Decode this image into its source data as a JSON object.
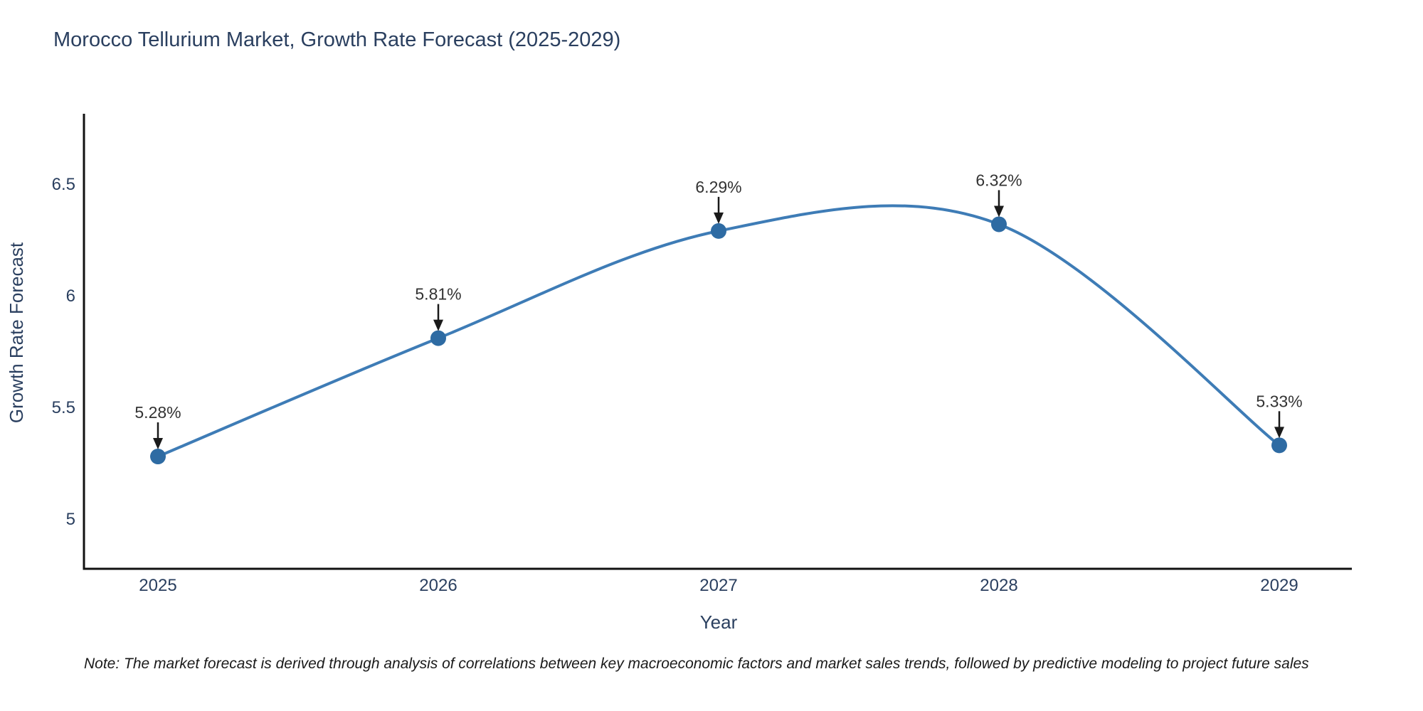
{
  "title": "Morocco Tellurium Market, Growth Rate Forecast (2025-2029)",
  "note": "Note: The market forecast is derived through analysis of correlations between key macroeconomic factors and market sales trends, followed by predictive modeling to project future sales",
  "chart_data": {
    "type": "line",
    "title": "Morocco Tellurium Market, Growth Rate Forecast (2025-2029)",
    "xlabel": "Year",
    "ylabel": "Growth Rate Forecast",
    "categories": [
      "2025",
      "2026",
      "2027",
      "2028",
      "2029"
    ],
    "values": [
      5.28,
      5.81,
      6.29,
      6.32,
      5.33
    ],
    "point_labels": [
      "5.28%",
      "5.81%",
      "6.29%",
      "6.32%",
      "5.33%"
    ],
    "y_ticks": [
      5,
      5.5,
      6,
      6.5
    ],
    "y_tick_labels": [
      "5",
      "5.5",
      "6",
      "6.5"
    ],
    "ylim": [
      4.777,
      6.815
    ],
    "line_shape": "spline",
    "grid": false,
    "legend": "none",
    "annotation_arrows": true,
    "colors": {
      "line": "#3e7cb6",
      "marker": "#2e6ba3",
      "axis": "#111111",
      "title_text": "#2a3f5f",
      "annotation_text": "#333333",
      "arrow": "#1a1a1a"
    }
  }
}
